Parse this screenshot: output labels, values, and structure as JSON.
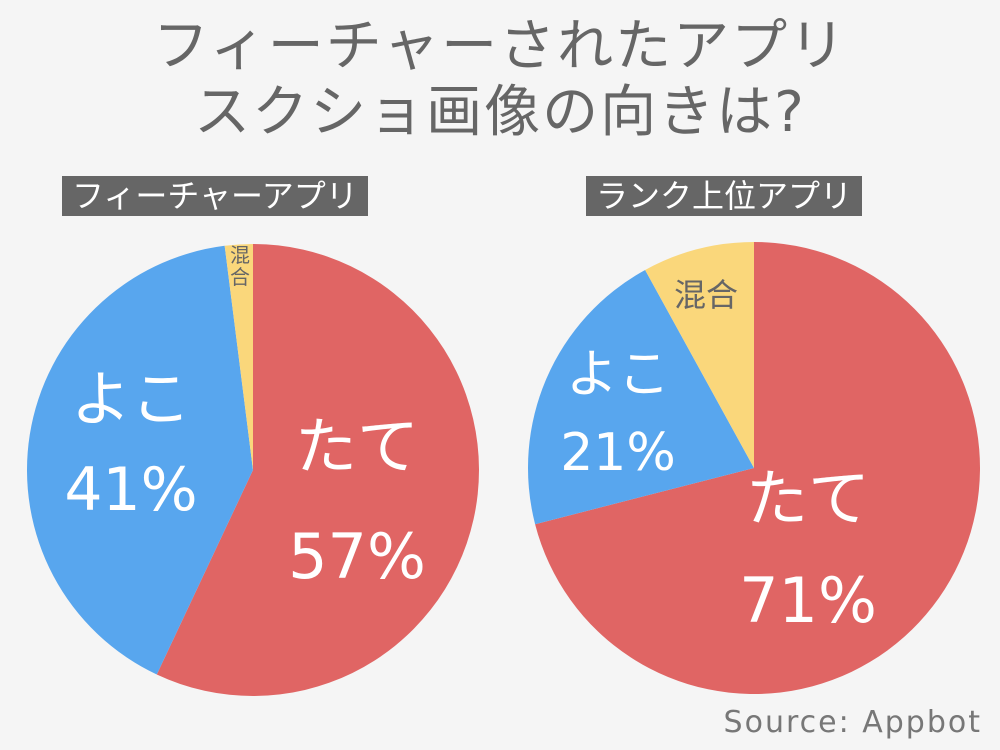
{
  "title_lines": [
    "フィーチャーされたアプリ",
    "スクショ画像の向きは?"
  ],
  "source": "Source: Appbot",
  "colors": {
    "tate": "#e06564",
    "yoko": "#58a6ee",
    "mixed": "#fad77b",
    "label_light": "#ffffff",
    "label_dark": "#666666",
    "background": "#f5f5f5"
  },
  "chart_data": [
    {
      "type": "pie",
      "title": "フィーチャーアプリ",
      "slices": [
        {
          "label": "たて",
          "value": 57,
          "display": "57%",
          "color": "#e06564"
        },
        {
          "label": "よこ",
          "value": 41,
          "display": "41%",
          "color": "#58a6ee"
        },
        {
          "label": "混合",
          "value": 2,
          "display": "",
          "color": "#fad77b"
        }
      ]
    },
    {
      "type": "pie",
      "title": "ランク上位アプリ",
      "slices": [
        {
          "label": "たて",
          "value": 71,
          "display": "71%",
          "color": "#e06564"
        },
        {
          "label": "よこ",
          "value": 21,
          "display": "21%",
          "color": "#58a6ee"
        },
        {
          "label": "混合",
          "value": 8,
          "display": "",
          "color": "#fad77b"
        }
      ]
    }
  ]
}
